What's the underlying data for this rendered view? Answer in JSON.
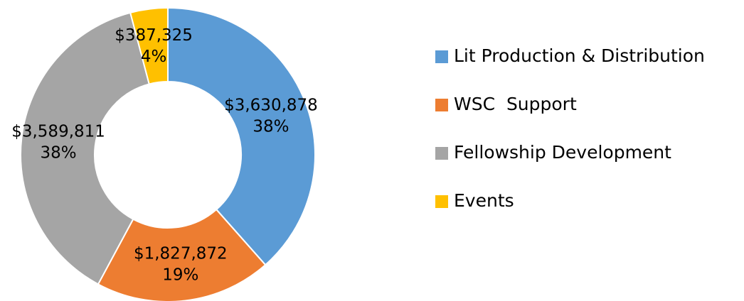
{
  "chart_data": {
    "type": "donut",
    "categories": [
      "Lit Production & Distribution",
      "WSC  Support",
      "Fellowship Development",
      "Events"
    ],
    "values": [
      3630878,
      1827872,
      3589811,
      387325
    ],
    "value_labels": [
      "$3,630,878",
      "$1,827,872",
      "$3,589,811",
      "$387,325"
    ],
    "percents": [
      38,
      19,
      38,
      4
    ],
    "percent_labels": [
      "38%",
      "19%",
      "38%",
      "4%"
    ],
    "colors": [
      "#5b9bd5",
      "#ed7d31",
      "#a5a5a5",
      "#ffc000"
    ],
    "legend": "right"
  }
}
